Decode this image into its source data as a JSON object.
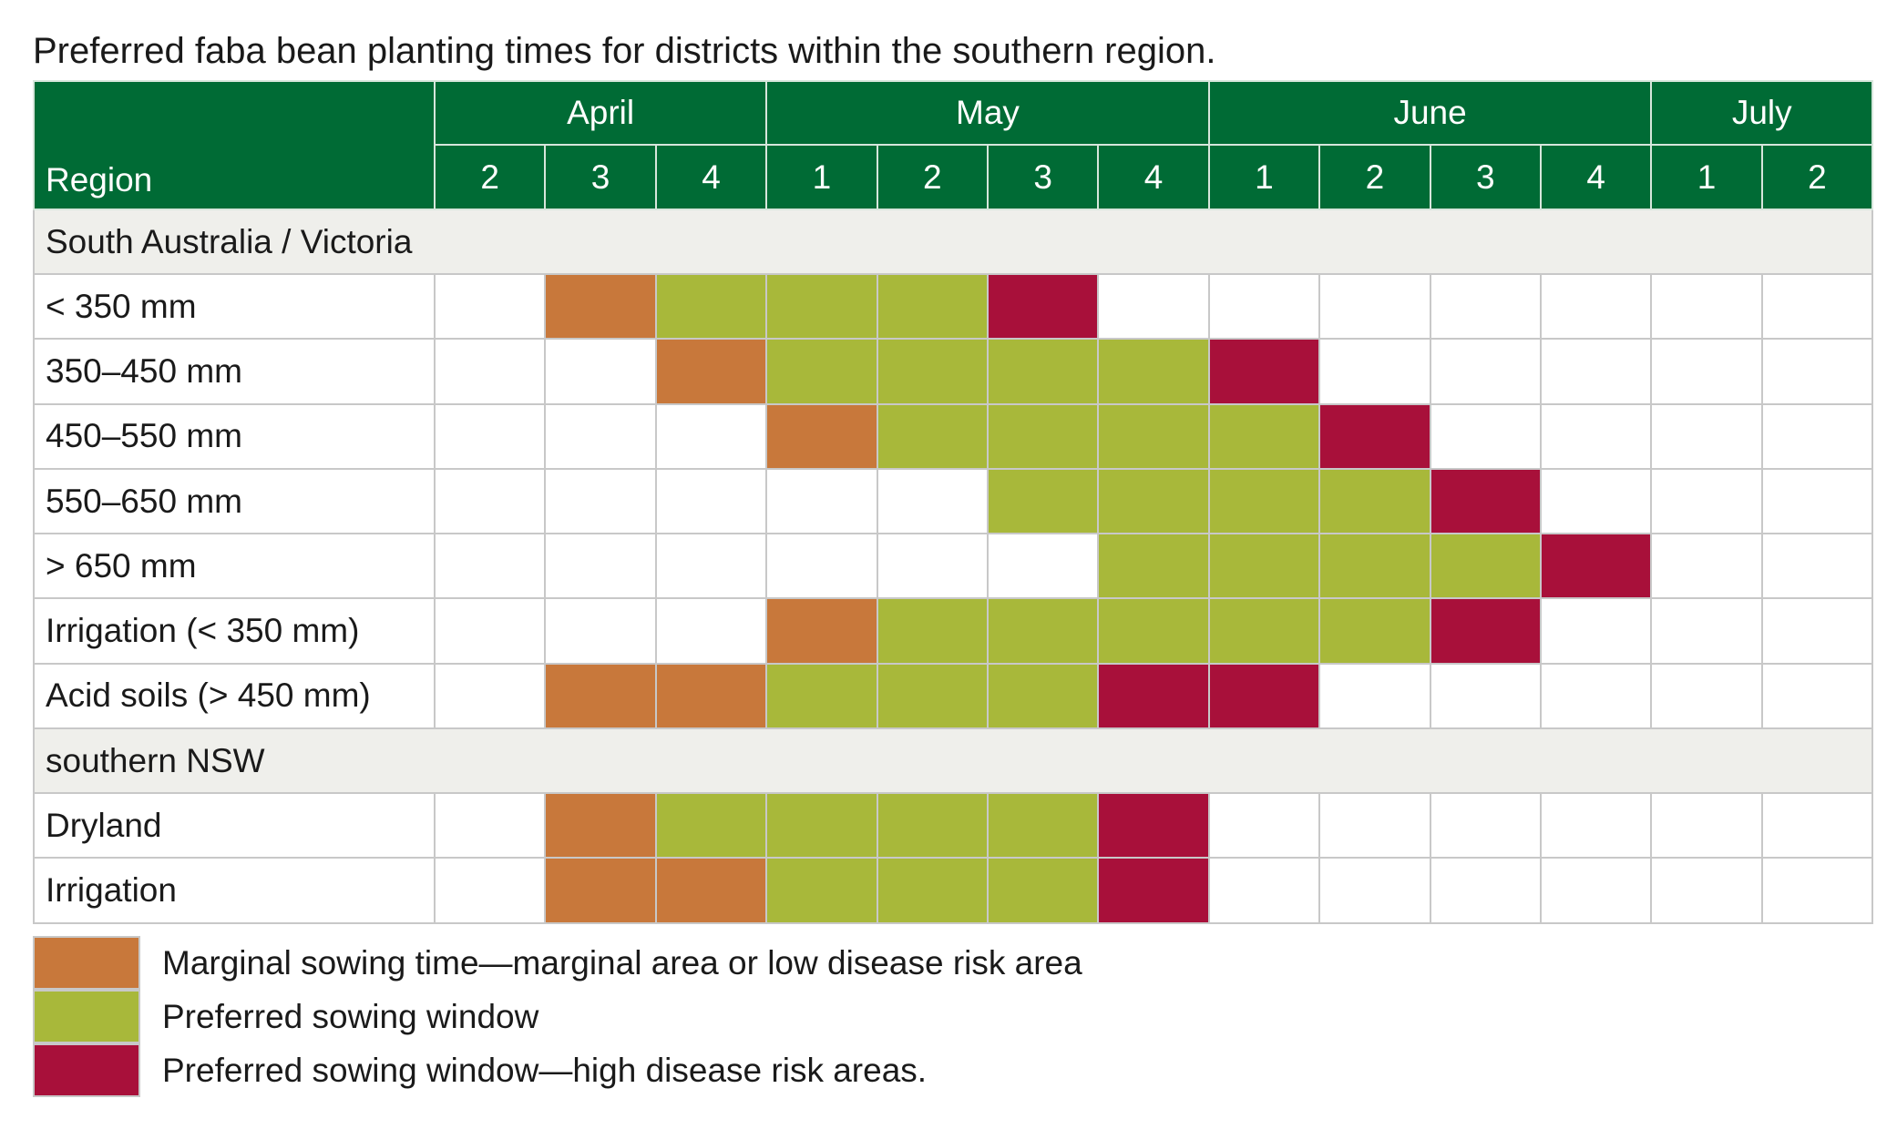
{
  "title": "Preferred faba bean planting times for districts within the southern region.",
  "colors": {
    "M": "#c8783b",
    "P": "#a8b83a",
    "H": "#a8103a",
    "header_bg": "#006b35",
    "group_bg": "#efefeb"
  },
  "header": {
    "region_label": "Region",
    "months": [
      {
        "label": "April",
        "span": 3
      },
      {
        "label": "May",
        "span": 4
      },
      {
        "label": "June",
        "span": 4
      },
      {
        "label": "July",
        "span": 2
      }
    ],
    "weeks": [
      "2",
      "3",
      "4",
      "1",
      "2",
      "3",
      "4",
      "1",
      "2",
      "3",
      "4",
      "1",
      "2"
    ]
  },
  "groups": [
    {
      "name": "South Australia / Victoria",
      "rows": [
        {
          "label": "< 350 mm",
          "cells": [
            "N",
            "M",
            "P",
            "P",
            "P",
            "H",
            "N",
            "N",
            "N",
            "N",
            "N",
            "N",
            "N"
          ]
        },
        {
          "label": "350–450 mm",
          "cells": [
            "N",
            "N",
            "M",
            "P",
            "P",
            "P",
            "P",
            "H",
            "N",
            "N",
            "N",
            "N",
            "N"
          ]
        },
        {
          "label": "450–550 mm",
          "cells": [
            "N",
            "N",
            "N",
            "M",
            "P",
            "P",
            "P",
            "P",
            "H",
            "N",
            "N",
            "N",
            "N"
          ]
        },
        {
          "label": "550–650 mm",
          "cells": [
            "N",
            "N",
            "N",
            "N",
            "N",
            "P",
            "P",
            "P",
            "P",
            "H",
            "N",
            "N",
            "N"
          ]
        },
        {
          "label": "> 650 mm",
          "cells": [
            "N",
            "N",
            "N",
            "N",
            "N",
            "N",
            "P",
            "P",
            "P",
            "P",
            "H",
            "N",
            "N"
          ]
        },
        {
          "label": "Irrigation (< 350 mm)",
          "cells": [
            "N",
            "N",
            "N",
            "M",
            "P",
            "P",
            "P",
            "P",
            "P",
            "H",
            "N",
            "N",
            "N"
          ]
        },
        {
          "label": "Acid soils (> 450 mm)",
          "cells": [
            "N",
            "M",
            "M",
            "P",
            "P",
            "P",
            "H",
            "H",
            "N",
            "N",
            "N",
            "N",
            "N"
          ]
        }
      ]
    },
    {
      "name": "southern NSW",
      "rows": [
        {
          "label": "Dryland",
          "cells": [
            "N",
            "M",
            "P",
            "P",
            "P",
            "P",
            "H",
            "N",
            "N",
            "N",
            "N",
            "N",
            "N"
          ]
        },
        {
          "label": "Irrigation",
          "cells": [
            "N",
            "M",
            "M",
            "P",
            "P",
            "P",
            "H",
            "N",
            "N",
            "N",
            "N",
            "N",
            "N"
          ]
        }
      ]
    }
  ],
  "legend": [
    {
      "key": "M",
      "text": "Marginal sowing time—marginal area or low disease risk area"
    },
    {
      "key": "P",
      "text": "Preferred sowing window"
    },
    {
      "key": "H",
      "text": "Preferred sowing window—high disease risk areas."
    }
  ]
}
